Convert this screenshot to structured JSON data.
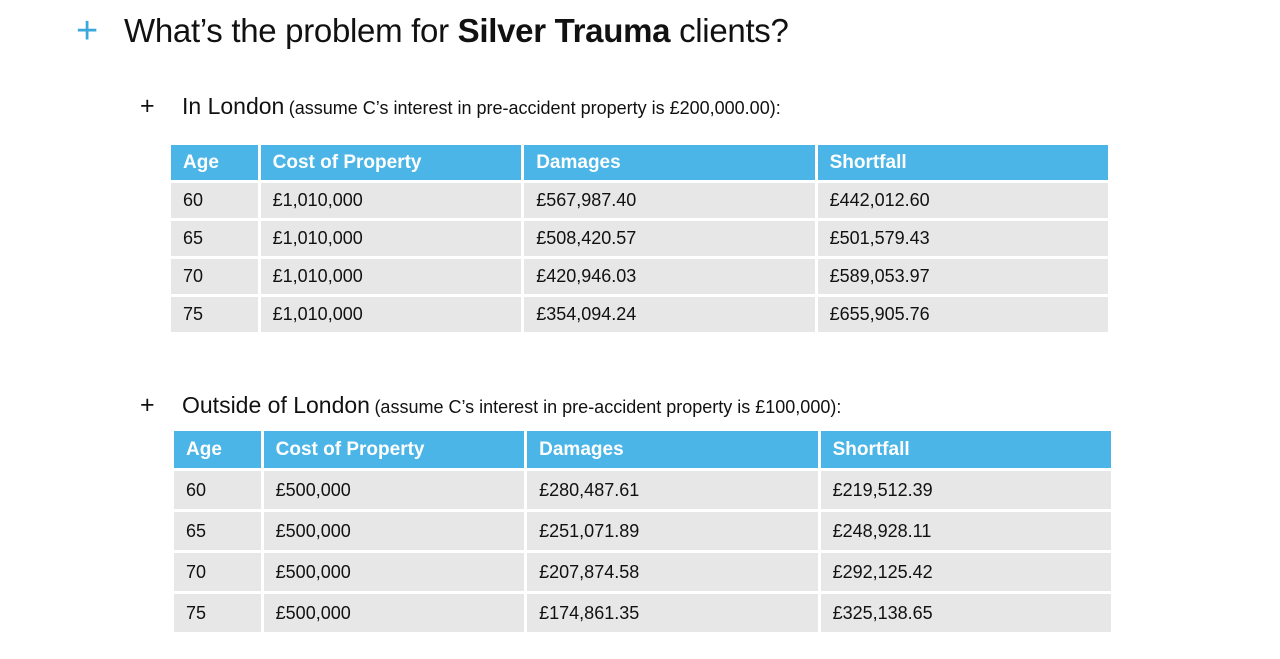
{
  "title": {
    "prefix": "What’s the problem for ",
    "bold": "Silver Trauma",
    "suffix": " clients?"
  },
  "section1": {
    "heading": "In London",
    "note": "(assume C’s interest in pre-accident property is £200,000.00):",
    "headers": [
      "Age",
      "Cost of Property",
      "Damages",
      "Shortfall"
    ],
    "rows": [
      [
        "60",
        "£1,010,000",
        "£567,987.40",
        "£442,012.60"
      ],
      [
        "65",
        "£1,010,000",
        "£508,420.57",
        "£501,579.43"
      ],
      [
        "70",
        "£1,010,000",
        "£420,946.03",
        "£589,053.97"
      ],
      [
        "75",
        "£1,010,000",
        "£354,094.24",
        "£655,905.76"
      ]
    ]
  },
  "section2": {
    "heading": "Outside of London",
    "note": "(assume C’s interest in pre-accident property is £100,000):",
    "headers": [
      "Age",
      "Cost of Property",
      "Damages",
      "Shortfall"
    ],
    "rows": [
      [
        "60",
        "£500,000",
        "£280,487.61",
        "£219,512.39"
      ],
      [
        "65",
        "£500,000",
        "£251,071.89",
        "£248,928.11"
      ],
      [
        "70",
        "£500,000",
        "£207,874.58",
        "£292,125.42"
      ],
      [
        "75",
        "£500,000",
        "£174,861.35",
        "£325,138.65"
      ]
    ]
  },
  "colors": {
    "accent": "#3aa8dc",
    "header_bg": "#4ab5e6",
    "row_bg": "#e7e7e7"
  },
  "icons": {
    "title_bullet": "plus-icon",
    "sub_bullet": "plus-icon"
  }
}
